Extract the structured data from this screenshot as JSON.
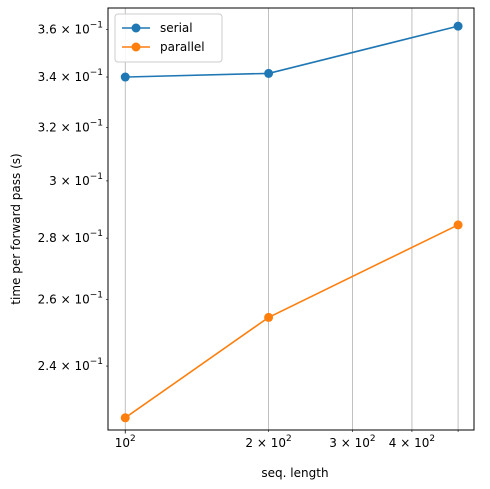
{
  "chart_data": {
    "type": "line",
    "x": [
      100,
      200,
      500
    ],
    "series": [
      {
        "name": "serial",
        "color": "#1f77b4",
        "marker": "circle",
        "values": [
          0.34,
          0.3415,
          0.3615
        ]
      },
      {
        "name": "parallel",
        "color": "#ff7f0e",
        "marker": "circle",
        "values": [
          0.2255,
          0.2545,
          0.2845
        ]
      }
    ],
    "title": "",
    "xlabel": "seq. length",
    "ylabel": "time per forward pass (s)",
    "xscale": "log",
    "yscale": "log",
    "xlim": [
      92,
      540
    ],
    "ylim": [
      0.2222,
      0.3695
    ],
    "xticks_major": [
      {
        "value": 100,
        "base": "10",
        "exp": "2"
      }
    ],
    "xticks_minor": [
      {
        "value": 200,
        "mant": "2",
        "base": "10",
        "exp": "2"
      },
      {
        "value": 300,
        "mant": "3",
        "base": "10",
        "exp": "2"
      },
      {
        "value": 400,
        "mant": "4",
        "base": "10",
        "exp": "2"
      },
      {
        "value": 500,
        "mant": "",
        "base": "",
        "exp": ""
      }
    ],
    "yticks_minor": [
      {
        "value": 0.24,
        "mant": "2.4",
        "base": "10",
        "exp": "−1"
      },
      {
        "value": 0.26,
        "mant": "2.6",
        "base": "10",
        "exp": "−1"
      },
      {
        "value": 0.28,
        "mant": "2.8",
        "base": "10",
        "exp": "−1"
      },
      {
        "value": 0.3,
        "mant": "3",
        "base": "10",
        "exp": "−1"
      },
      {
        "value": 0.32,
        "mant": "3.2",
        "base": "10",
        "exp": "−1"
      },
      {
        "value": 0.34,
        "mant": "3.4",
        "base": "10",
        "exp": "−1"
      },
      {
        "value": 0.36,
        "mant": "3.6",
        "base": "10",
        "exp": "−1"
      }
    ],
    "grid": {
      "axis": "x",
      "which": "both",
      "color": "#b0b0b0"
    },
    "legend": "upper-left"
  }
}
